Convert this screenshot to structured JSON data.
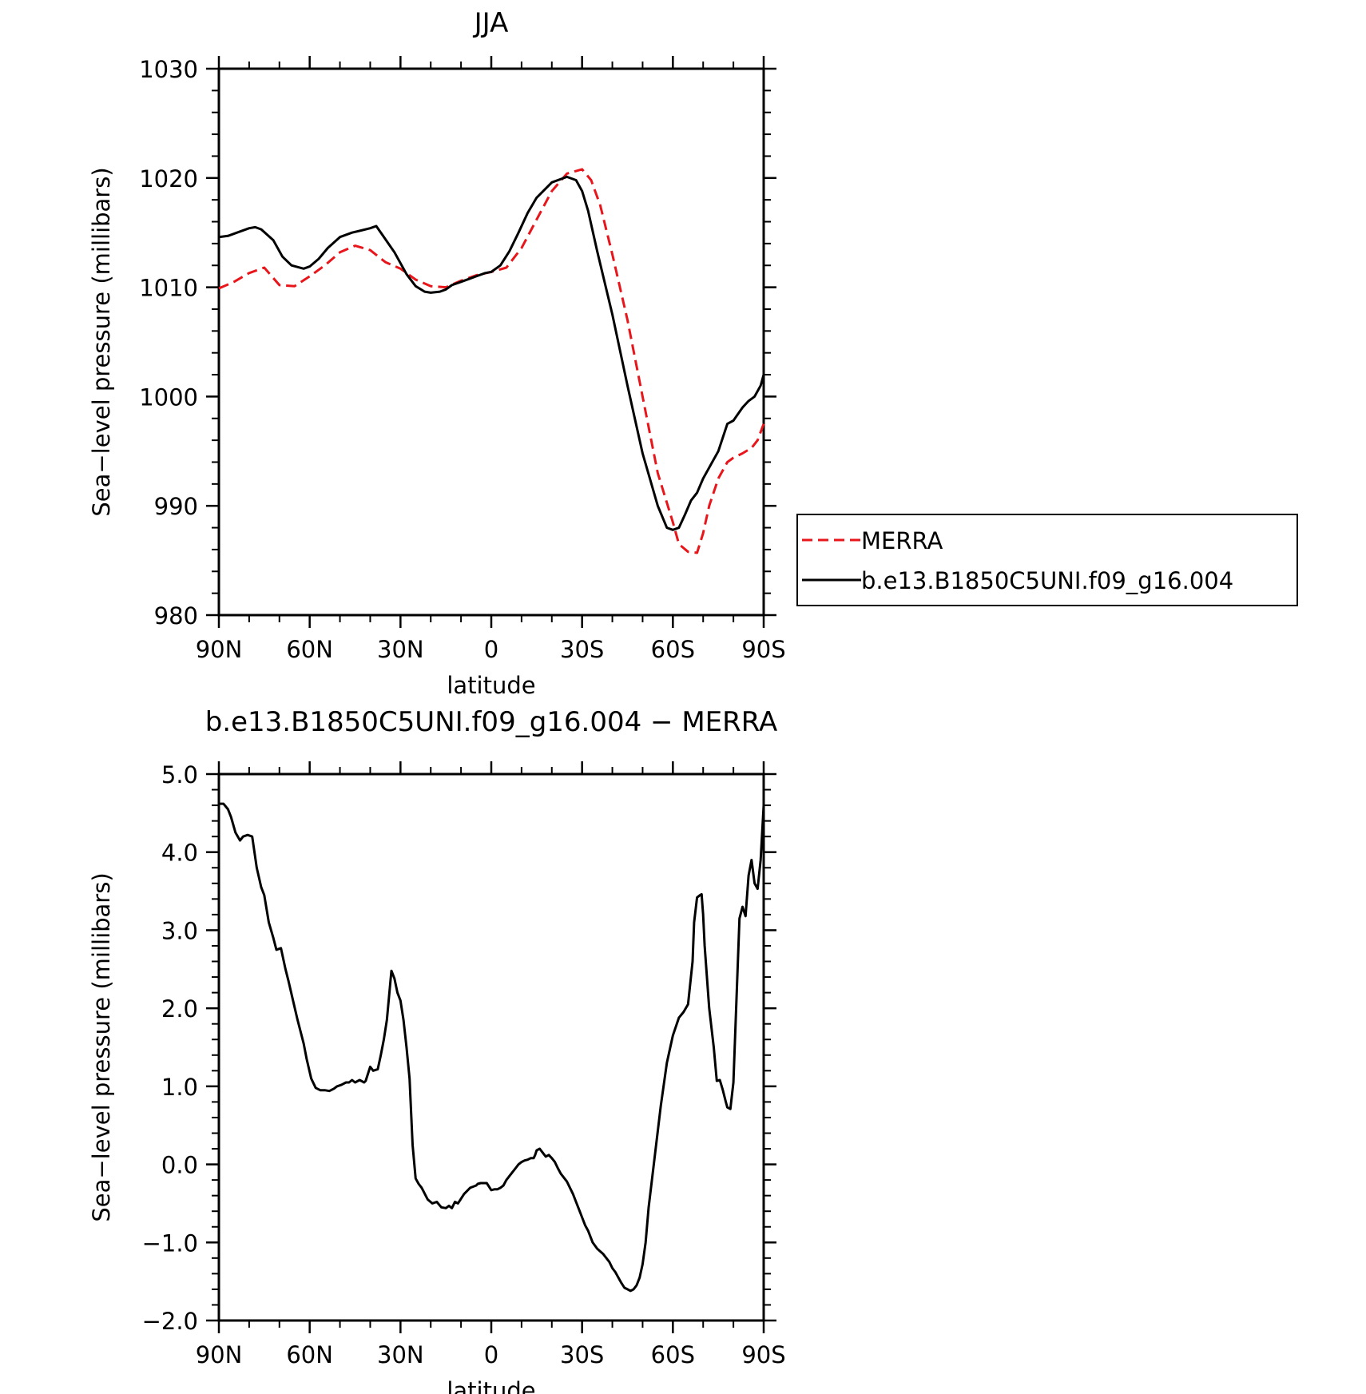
{
  "chart_data": [
    {
      "type": "line",
      "title": "JJA",
      "xlabel": "latitude",
      "ylabel": "Sea-level pressure (millibars)",
      "xlim": [
        90,
        -90
      ],
      "ylim": [
        980,
        1030
      ],
      "x_ticks": [
        {
          "value": 90,
          "label": "90N"
        },
        {
          "value": 60,
          "label": "60N"
        },
        {
          "value": 30,
          "label": "30N"
        },
        {
          "value": 0,
          "label": "0"
        },
        {
          "value": -30,
          "label": "30S"
        },
        {
          "value": -60,
          "label": "60S"
        },
        {
          "value": -90,
          "label": "90S"
        }
      ],
      "y_ticks": [
        {
          "value": 980,
          "label": "980"
        },
        {
          "value": 990,
          "label": "990"
        },
        {
          "value": 1000,
          "label": "1000"
        },
        {
          "value": 1010,
          "label": "1010"
        },
        {
          "value": 1020,
          "label": "1020"
        },
        {
          "value": 1030,
          "label": "1030"
        }
      ],
      "legend_position": "right",
      "series": [
        {
          "name": "MERRA",
          "color": "#e8161b",
          "dash": "dashed",
          "x": [
            90,
            85,
            80,
            75,
            70,
            65,
            60,
            55,
            50,
            45,
            40,
            35,
            30,
            25,
            20,
            15,
            10,
            5,
            0,
            -5,
            -10,
            -15,
            -20,
            -25,
            -30,
            -33,
            -36,
            -40,
            -45,
            -50,
            -55,
            -60,
            -62,
            -65,
            -68,
            -70,
            -72,
            -75,
            -78,
            -80,
            -83,
            -86,
            -88,
            -90
          ],
          "y": [
            1009.9,
            1010.5,
            1011.3,
            1011.8,
            1010.2,
            1010.1,
            1011.0,
            1012.0,
            1013.2,
            1013.8,
            1013.4,
            1012.3,
            1011.7,
            1010.7,
            1010.1,
            1010.0,
            1010.6,
            1011.1,
            1011.4,
            1011.8,
            1013.6,
            1016.2,
            1018.8,
            1020.4,
            1020.8,
            1019.8,
            1017.5,
            1013.0,
            1007.0,
            1000.0,
            993.0,
            988.5,
            986.5,
            985.8,
            985.7,
            987.5,
            990.0,
            992.5,
            994.0,
            994.4,
            994.8,
            995.3,
            996.0,
            997.5
          ]
        },
        {
          "name": "b.e13.B1850C5UNI.f09_g16.004",
          "color": "#000000",
          "dash": "solid",
          "x": [
            90,
            87,
            84,
            80,
            78,
            76,
            72,
            69,
            66,
            62,
            60,
            57,
            54,
            50,
            46,
            43,
            40,
            38,
            36,
            34,
            32,
            28,
            25,
            22,
            20,
            17,
            15,
            13,
            10,
            7,
            5,
            2,
            0,
            -3,
            -6,
            -9,
            -12,
            -15,
            -20,
            -25,
            -28,
            -30,
            -32,
            -35,
            -40,
            -45,
            -50,
            -55,
            -58,
            -60,
            -62,
            -64,
            -66,
            -68,
            -70,
            -72,
            -75,
            -78,
            -80,
            -81,
            -83,
            -85,
            -87,
            -89,
            -90
          ],
          "y": [
            1014.6,
            1014.7,
            1015.0,
            1015.4,
            1015.5,
            1015.3,
            1014.3,
            1012.8,
            1012.0,
            1011.7,
            1011.9,
            1012.6,
            1013.6,
            1014.6,
            1015.0,
            1015.2,
            1015.4,
            1015.6,
            1014.8,
            1014.0,
            1013.2,
            1011.2,
            1010.1,
            1009.6,
            1009.5,
            1009.6,
            1009.8,
            1010.2,
            1010.5,
            1010.8,
            1011.0,
            1011.3,
            1011.4,
            1012.0,
            1013.3,
            1015.0,
            1016.8,
            1018.2,
            1019.6,
            1020.1,
            1019.8,
            1018.8,
            1017.0,
            1013.3,
            1007.5,
            1001.0,
            994.8,
            990.0,
            988.0,
            987.8,
            988.0,
            989.2,
            990.5,
            991.2,
            992.5,
            993.5,
            995.0,
            997.5,
            997.8,
            998.2,
            999.0,
            999.6,
            1000.0,
            1001.0,
            1002.0
          ]
        }
      ]
    },
    {
      "type": "line",
      "title": "b.e13.B1850C5UNI.f09_g16.004 - MERRA",
      "xlabel": "latitude",
      "ylabel": "Sea-level pressure (millibars)",
      "xlim": [
        90,
        -90
      ],
      "ylim": [
        -2.0,
        5.0
      ],
      "x_ticks": [
        {
          "value": 90,
          "label": "90N"
        },
        {
          "value": 60,
          "label": "60N"
        },
        {
          "value": 30,
          "label": "30N"
        },
        {
          "value": 0,
          "label": "0"
        },
        {
          "value": -30,
          "label": "30S"
        },
        {
          "value": -60,
          "label": "60S"
        },
        {
          "value": -90,
          "label": "90S"
        }
      ],
      "y_ticks": [
        {
          "value": -2.0,
          "label": "-2.0"
        },
        {
          "value": -1.0,
          "label": "-1.0"
        },
        {
          "value": 0.0,
          "label": "0.0"
        },
        {
          "value": 1.0,
          "label": "1.0"
        },
        {
          "value": 2.0,
          "label": "2.0"
        },
        {
          "value": 3.0,
          "label": "3.0"
        },
        {
          "value": 4.0,
          "label": "4.0"
        },
        {
          "value": 5.0,
          "label": "5.0"
        }
      ],
      "series": [
        {
          "color": "#000000",
          "dash": "solid",
          "x": [
            90,
            88.5,
            87,
            86,
            84.5,
            83,
            82,
            80.5,
            79,
            77.5,
            76,
            75,
            73.5,
            72,
            71,
            69.5,
            68,
            67,
            65.5,
            64,
            62,
            61,
            59.5,
            58,
            56.5,
            55,
            53.5,
            52,
            51,
            49.5,
            48,
            47,
            46,
            45,
            43.5,
            42,
            41.5,
            40,
            39,
            37.5,
            36.5,
            35.5,
            34.5,
            33,
            32,
            31,
            30,
            29,
            28,
            27,
            26,
            25,
            24,
            23,
            21,
            19.5,
            18,
            16.5,
            15,
            14,
            13,
            12,
            11,
            9,
            7,
            5,
            4.5,
            3.5,
            2.5,
            1.5,
            0,
            -1,
            -2,
            -3,
            -4,
            -5,
            -6,
            -7,
            -8,
            -9,
            -10,
            -11,
            -12,
            -13,
            -14,
            -14.5,
            -15,
            -16,
            -17,
            -18,
            -19,
            -20,
            -21,
            -22,
            -23,
            -25,
            -27,
            -28,
            -29,
            -30,
            -31,
            -32,
            -33.5,
            -35,
            -37,
            -39,
            -40,
            -41,
            -42,
            -43,
            -44,
            -45,
            -46,
            -47,
            -48,
            -49,
            -50,
            -51,
            -52,
            -54,
            -56,
            -58,
            -60,
            -62,
            -63.5,
            -65,
            -66.5,
            -67,
            -68,
            -69,
            -69.5,
            -70,
            -70.5,
            -72,
            -73.5,
            -74.5,
            -75.5,
            -76.5,
            -77.5,
            -78,
            -79,
            -80,
            -81,
            -82,
            -83,
            -84,
            -85,
            -86,
            -87,
            -88,
            -89,
            -90
          ],
          "y": [
            4.62,
            4.62,
            4.55,
            4.45,
            4.25,
            4.15,
            4.2,
            4.22,
            4.2,
            3.8,
            3.55,
            3.45,
            3.1,
            2.9,
            2.75,
            2.77,
            2.5,
            2.35,
            2.1,
            1.85,
            1.55,
            1.35,
            1.1,
            0.98,
            0.95,
            0.95,
            0.94,
            0.97,
            1.0,
            1.02,
            1.05,
            1.05,
            1.08,
            1.05,
            1.08,
            1.05,
            1.07,
            1.25,
            1.2,
            1.22,
            1.4,
            1.6,
            1.85,
            2.48,
            2.38,
            2.2,
            2.1,
            1.85,
            1.5,
            1.1,
            0.25,
            -0.18,
            -0.25,
            -0.3,
            -0.45,
            -0.5,
            -0.48,
            -0.55,
            -0.56,
            -0.53,
            -0.56,
            -0.48,
            -0.5,
            -0.38,
            -0.3,
            -0.27,
            -0.25,
            -0.24,
            -0.24,
            -0.24,
            -0.33,
            -0.32,
            -0.32,
            -0.3,
            -0.27,
            -0.2,
            -0.15,
            -0.1,
            -0.05,
            0.0,
            0.03,
            0.05,
            0.06,
            0.08,
            0.08,
            0.12,
            0.18,
            0.2,
            0.15,
            0.1,
            0.12,
            0.08,
            0.03,
            -0.05,
            -0.12,
            -0.22,
            -0.38,
            -0.48,
            -0.58,
            -0.68,
            -0.78,
            -0.85,
            -1.0,
            -1.08,
            -1.15,
            -1.25,
            -1.33,
            -1.38,
            -1.45,
            -1.52,
            -1.58,
            -1.6,
            -1.62,
            -1.6,
            -1.55,
            -1.45,
            -1.28,
            -1.0,
            -0.55,
            0.1,
            0.75,
            1.3,
            1.65,
            1.88,
            1.95,
            2.05,
            2.6,
            3.1,
            3.42,
            3.45,
            3.46,
            3.2,
            2.8,
            2.0,
            1.5,
            1.07,
            1.08,
            0.95,
            0.8,
            0.73,
            0.71,
            1.05,
            2.1,
            3.15,
            3.3,
            3.18,
            3.7,
            3.9,
            3.6,
            3.53,
            3.9,
            4.6
          ]
        }
      ]
    }
  ]
}
